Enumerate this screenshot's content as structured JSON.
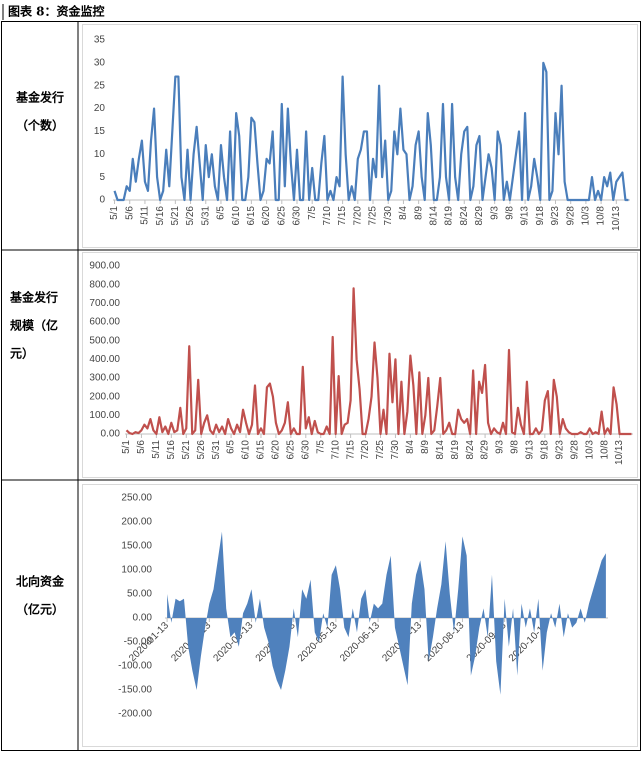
{
  "title": "图表 8：资金监控",
  "row_labels": [
    [
      "基金发行",
      "（个数）"
    ],
    [
      "基金发行",
      "规模（亿",
      "元）"
    ],
    [
      "北向资金",
      "（亿元）"
    ]
  ],
  "chart_data": [
    {
      "type": "line",
      "color": "#4a7ebb",
      "ylim": [
        0,
        35
      ],
      "yticks": [
        0,
        5,
        10,
        15,
        20,
        25,
        30,
        35
      ],
      "categories": [
        "5/1",
        null,
        null,
        null,
        null,
        "5/6",
        null,
        null,
        null,
        null,
        "5/11",
        null,
        null,
        null,
        null,
        "5/16",
        null,
        null,
        null,
        null,
        "5/21",
        null,
        null,
        null,
        null,
        "5/26",
        null,
        null,
        null,
        null,
        "5/31",
        null,
        null,
        null,
        null,
        "6/5",
        null,
        null,
        null,
        null,
        "6/10",
        null,
        null,
        null,
        null,
        "6/15",
        null,
        null,
        null,
        null,
        "6/20",
        null,
        null,
        null,
        null,
        "6/25",
        null,
        null,
        null,
        null,
        "6/30",
        null,
        null,
        null,
        null,
        "7/5",
        null,
        null,
        null,
        null,
        "7/10",
        null,
        null,
        null,
        null,
        "7/15",
        null,
        null,
        null,
        null,
        "7/20",
        null,
        null,
        null,
        null,
        "7/25",
        null,
        null,
        null,
        null,
        "7/30",
        null,
        null,
        null,
        null,
        "8/4",
        null,
        null,
        null,
        null,
        "8/9",
        null,
        null,
        null,
        null,
        "8/14",
        null,
        null,
        null,
        null,
        "8/19",
        null,
        null,
        null,
        null,
        "8/24",
        null,
        null,
        null,
        null,
        "8/29",
        null,
        null,
        null,
        null,
        "9/3",
        null,
        null,
        null,
        null,
        "9/8",
        null,
        null,
        null,
        null,
        "9/13",
        null,
        null,
        null,
        null,
        "9/18",
        null,
        null,
        null,
        null,
        "9/23",
        null,
        null,
        null,
        null,
        "9/28",
        null,
        null,
        null,
        null,
        "10/3",
        null,
        null,
        null,
        null,
        "10/8",
        null,
        null,
        null,
        null,
        "10/13",
        null,
        null,
        null,
        null
      ],
      "values": [
        2,
        0,
        0,
        0,
        3,
        2,
        9,
        4,
        9,
        13,
        4,
        2,
        13,
        20,
        5,
        0,
        2,
        11,
        3,
        15,
        27,
        27,
        5,
        0,
        11,
        0,
        10,
        16,
        8,
        0,
        12,
        5,
        10,
        3,
        0,
        12,
        5,
        0,
        15,
        0,
        19,
        14,
        0,
        0,
        5,
        18,
        17,
        8,
        0,
        2,
        9,
        8,
        15,
        0,
        0,
        21,
        3,
        20,
        8,
        0,
        11,
        0,
        0,
        15,
        0,
        7,
        0,
        0,
        8,
        14,
        0,
        2,
        0,
        5,
        3,
        27,
        10,
        0,
        3,
        0,
        9,
        11,
        15,
        15,
        0,
        9,
        5,
        25,
        5,
        13,
        0,
        2,
        15,
        10,
        20,
        11,
        10,
        0,
        3,
        12,
        15,
        5,
        0,
        19,
        12,
        0,
        0,
        5,
        21,
        5,
        0,
        21,
        5,
        0,
        10,
        15,
        16,
        0,
        3,
        12,
        14,
        0,
        5,
        10,
        7,
        0,
        15,
        12,
        0,
        4,
        0,
        5,
        10,
        15,
        0,
        19,
        0,
        3,
        9,
        5,
        0,
        30,
        28,
        0,
        2,
        19,
        10,
        25,
        4,
        0,
        0,
        0,
        0,
        0,
        0,
        0,
        0,
        5,
        0,
        2,
        0,
        5,
        3,
        6,
        0,
        4,
        5,
        6,
        0,
        0
      ]
    },
    {
      "type": "line",
      "color": "#c0504d",
      "ylim": [
        0,
        900
      ],
      "yticks": [
        {
          "value": 0,
          "label": "0.00"
        },
        {
          "value": 100,
          "label": "100.00"
        },
        {
          "value": 200,
          "label": "200.00"
        },
        {
          "value": 300,
          "label": "300.00"
        },
        {
          "value": 400,
          "label": "400.00"
        },
        {
          "value": 500,
          "label": "500.00"
        },
        {
          "value": 600,
          "label": "600.00"
        },
        {
          "value": 700,
          "label": "700.00"
        },
        {
          "value": 800,
          "label": "800.00"
        },
        {
          "value": 900,
          "label": "900.00"
        }
      ],
      "categories": [
        "5/1",
        null,
        null,
        null,
        null,
        "5/6",
        null,
        null,
        null,
        null,
        "5/11",
        null,
        null,
        null,
        null,
        "5/16",
        null,
        null,
        null,
        null,
        "5/21",
        null,
        null,
        null,
        null,
        "5/26",
        null,
        null,
        null,
        null,
        "5/31",
        null,
        null,
        null,
        null,
        "6/5",
        null,
        null,
        null,
        null,
        "6/10",
        null,
        null,
        null,
        null,
        "6/15",
        null,
        null,
        null,
        null,
        "6/20",
        null,
        null,
        null,
        null,
        "6/25",
        null,
        null,
        null,
        null,
        "6/30",
        null,
        null,
        null,
        null,
        "7/5",
        null,
        null,
        null,
        null,
        "7/10",
        null,
        null,
        null,
        null,
        "7/15",
        null,
        null,
        null,
        null,
        "7/20",
        null,
        null,
        null,
        null,
        "7/25",
        null,
        null,
        null,
        null,
        "7/30",
        null,
        null,
        null,
        null,
        "8/4",
        null,
        null,
        null,
        null,
        "8/9",
        null,
        null,
        null,
        null,
        "8/14",
        null,
        null,
        null,
        null,
        "8/19",
        null,
        null,
        null,
        null,
        "8/24",
        null,
        null,
        null,
        null,
        "8/29",
        null,
        null,
        null,
        null,
        "9/3",
        null,
        null,
        null,
        null,
        "9/8",
        null,
        null,
        null,
        null,
        "9/13",
        null,
        null,
        null,
        null,
        "9/18",
        null,
        null,
        null,
        null,
        "9/23",
        null,
        null,
        null,
        null,
        "9/28",
        null,
        null,
        null,
        null,
        "10/3",
        null,
        null,
        null,
        null,
        "10/8",
        null,
        null,
        null,
        null,
        "10/13",
        null,
        null,
        null,
        null
      ],
      "values": [
        20,
        5,
        0,
        10,
        5,
        20,
        50,
        30,
        80,
        20,
        0,
        90,
        10,
        40,
        0,
        60,
        10,
        20,
        140,
        0,
        30,
        470,
        0,
        20,
        290,
        0,
        60,
        100,
        20,
        0,
        50,
        10,
        40,
        0,
        80,
        30,
        0,
        50,
        10,
        130,
        60,
        0,
        50,
        260,
        0,
        30,
        0,
        250,
        270,
        200,
        60,
        0,
        20,
        60,
        170,
        0,
        30,
        0,
        0,
        360,
        30,
        90,
        0,
        70,
        10,
        0,
        0,
        40,
        0,
        520,
        0,
        310,
        0,
        50,
        60,
        180,
        780,
        400,
        240,
        0,
        0,
        80,
        200,
        490,
        300,
        0,
        130,
        0,
        430,
        170,
        400,
        0,
        280,
        0,
        120,
        420,
        260,
        0,
        330,
        0,
        100,
        300,
        0,
        20,
        150,
        300,
        0,
        20,
        60,
        0,
        0,
        130,
        80,
        60,
        80,
        0,
        340,
        0,
        280,
        220,
        370,
        60,
        0,
        30,
        10,
        0,
        60,
        0,
        450,
        10,
        0,
        140,
        50,
        0,
        280,
        0,
        0,
        30,
        0,
        20,
        180,
        230,
        0,
        290,
        200,
        0,
        80,
        30,
        10,
        0,
        0,
        0,
        10,
        0,
        0,
        30,
        0,
        10,
        0,
        120,
        0,
        30,
        0,
        250,
        160,
        0,
        0,
        0,
        0,
        0
      ]
    },
    {
      "type": "area",
      "color": "#4f81bd",
      "ylim": [
        -200,
        250
      ],
      "yticks": [
        {
          "value": -200,
          "label": "-200.00"
        },
        {
          "value": -150,
          "label": "-150.00"
        },
        {
          "value": -100,
          "label": "-100.00"
        },
        {
          "value": -50,
          "label": "-50.00"
        },
        {
          "value": 0,
          "label": "0.00"
        },
        {
          "value": 50,
          "label": "50.00"
        },
        {
          "value": 100,
          "label": "100.00"
        },
        {
          "value": 150,
          "label": "150.00"
        },
        {
          "value": 200,
          "label": "200.00"
        },
        {
          "value": 250,
          "label": "250.00"
        }
      ],
      "categories": [
        "2020-01-13",
        null,
        null,
        null,
        null,
        null,
        null,
        null,
        null,
        null,
        "2020-02-13",
        null,
        null,
        null,
        null,
        null,
        null,
        null,
        null,
        null,
        "2020-03-13",
        null,
        null,
        null,
        null,
        null,
        null,
        null,
        null,
        null,
        "2020-04-13",
        null,
        null,
        null,
        null,
        null,
        null,
        null,
        null,
        null,
        "2020-05-13",
        null,
        null,
        null,
        null,
        null,
        null,
        null,
        null,
        null,
        "2020-06-13",
        null,
        null,
        null,
        null,
        null,
        null,
        null,
        null,
        null,
        "2020-07-13",
        null,
        null,
        null,
        null,
        null,
        null,
        null,
        null,
        null,
        "2020-08-13",
        null,
        null,
        null,
        null,
        null,
        null,
        null,
        null,
        null,
        "2020-09-13",
        null,
        null,
        null,
        null,
        null,
        null,
        null,
        null,
        null,
        "2020-10-13",
        null,
        null,
        null,
        null,
        null,
        null,
        null,
        null,
        null,
        null,
        null,
        null,
        null,
        null
      ],
      "values": [
        50,
        -10,
        40,
        35,
        40,
        -60,
        -110,
        -150,
        -80,
        -20,
        30,
        60,
        120,
        180,
        20,
        -40,
        -30,
        -60,
        10,
        30,
        60,
        -10,
        40,
        -20,
        -50,
        -100,
        -130,
        -150,
        -110,
        -60,
        20,
        -40,
        60,
        40,
        80,
        -30,
        -50,
        10,
        -20,
        90,
        110,
        60,
        -20,
        -40,
        20,
        -30,
        40,
        60,
        -10,
        30,
        20,
        30,
        90,
        130,
        -20,
        -60,
        -100,
        -140,
        30,
        90,
        120,
        60,
        -90,
        -40,
        20,
        70,
        160,
        50,
        -30,
        60,
        170,
        130,
        -120,
        -80,
        -20,
        20,
        -40,
        90,
        -90,
        -160,
        40,
        -60,
        20,
        -120,
        30,
        -20,
        20,
        -30,
        40,
        -110,
        -30,
        10,
        -20,
        30,
        -40,
        10,
        -20,
        -10,
        20,
        -10,
        30,
        60,
        90,
        120,
        135
      ]
    }
  ]
}
